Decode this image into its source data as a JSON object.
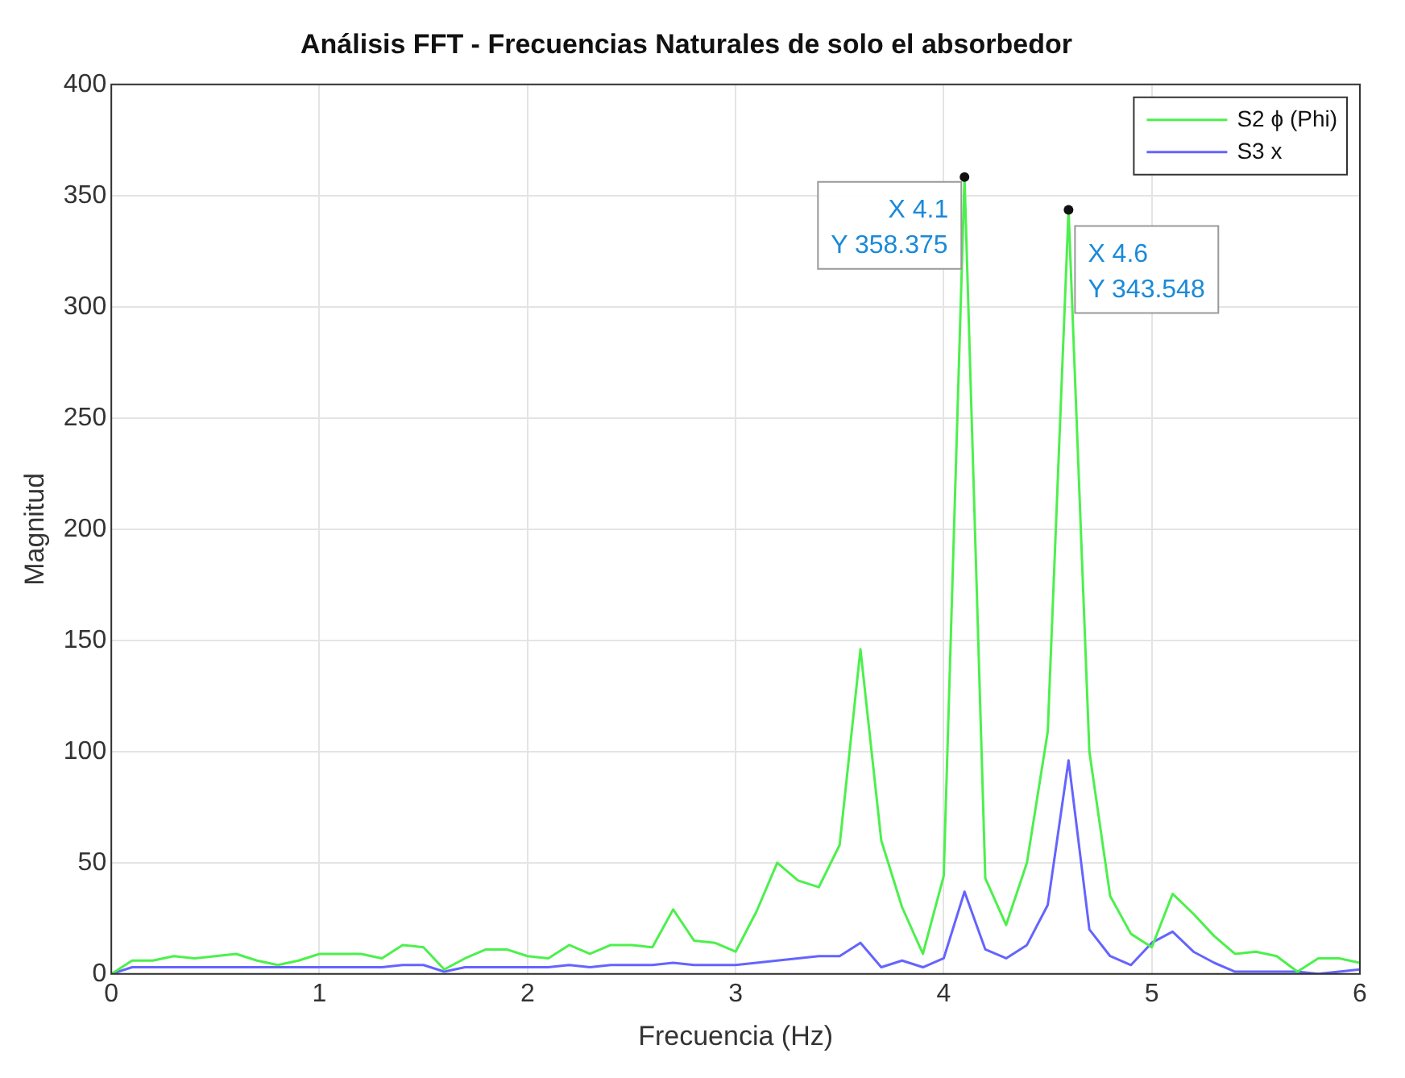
{
  "chart_data": {
    "type": "line",
    "title": "Análisis FFT - Frecuencias Naturales de solo el absorbedor",
    "xlabel": "Frecuencia (Hz)",
    "ylabel": "Magnitud",
    "x": [
      0,
      0.1,
      0.2,
      0.3,
      0.4,
      0.5,
      0.6,
      0.7,
      0.8,
      0.9,
      1,
      1.1,
      1.2,
      1.3,
      1.4,
      1.5,
      1.6,
      1.7,
      1.8,
      1.9,
      2,
      2.1,
      2.2,
      2.3,
      2.4,
      2.5,
      2.6,
      2.7,
      2.8,
      2.9,
      3,
      3.1,
      3.2,
      3.3,
      3.4,
      3.5,
      3.6,
      3.7,
      3.8,
      3.9,
      4,
      4.1,
      4.2,
      4.3,
      4.4,
      4.5,
      4.6,
      4.7,
      4.8,
      4.9,
      5,
      5.1,
      5.2,
      5.3,
      5.4,
      5.5,
      5.6,
      5.7,
      5.8,
      5.9,
      6
    ],
    "series": [
      {
        "name": "S2 ϕ (Phi)",
        "color": "#4cf04c",
        "values": [
          0,
          6,
          6,
          8,
          7,
          8,
          9,
          6,
          4,
          6,
          9,
          9,
          9,
          7,
          13,
          12,
          2,
          7,
          11,
          11,
          8,
          7,
          13,
          9,
          13,
          13,
          12,
          29,
          15,
          14,
          10,
          28,
          50,
          42,
          39,
          58,
          146,
          60,
          30,
          9,
          44,
          358.375,
          43,
          22,
          50,
          109,
          343.548,
          100,
          35,
          18,
          12,
          36,
          27,
          17,
          9,
          10,
          8,
          1,
          7,
          7,
          5
        ]
      },
      {
        "name": "S3 x",
        "color": "#6464ff",
        "values": [
          0,
          3,
          3,
          3,
          3,
          3,
          3,
          3,
          3,
          3,
          3,
          3,
          3,
          3,
          4,
          4,
          1,
          3,
          3,
          3,
          3,
          3,
          4,
          3,
          4,
          4,
          4,
          5,
          4,
          4,
          4,
          5,
          6,
          7,
          8,
          8,
          14,
          3,
          6,
          3,
          7,
          37,
          11,
          7,
          13,
          31,
          96,
          20,
          8,
          4,
          14,
          19,
          10,
          5,
          1,
          1,
          1,
          1,
          0,
          1,
          2
        ]
      }
    ],
    "annotations": [
      {
        "text": "X 4.1\nY 358.375",
        "x": 4.1,
        "y": 358.375
      },
      {
        "text": "X 4.6\nY 343.548",
        "x": 4.6,
        "y": 343.548
      }
    ],
    "xlim": [
      0,
      6
    ],
    "xticks": [
      0,
      1,
      2,
      3,
      4,
      5,
      6
    ],
    "ylim": [
      0,
      400
    ],
    "yticks": [
      0,
      50,
      100,
      150,
      200,
      250,
      300,
      350,
      400
    ],
    "grid": true,
    "legend": "top right",
    "marker": "none",
    "line_style": "solid"
  }
}
